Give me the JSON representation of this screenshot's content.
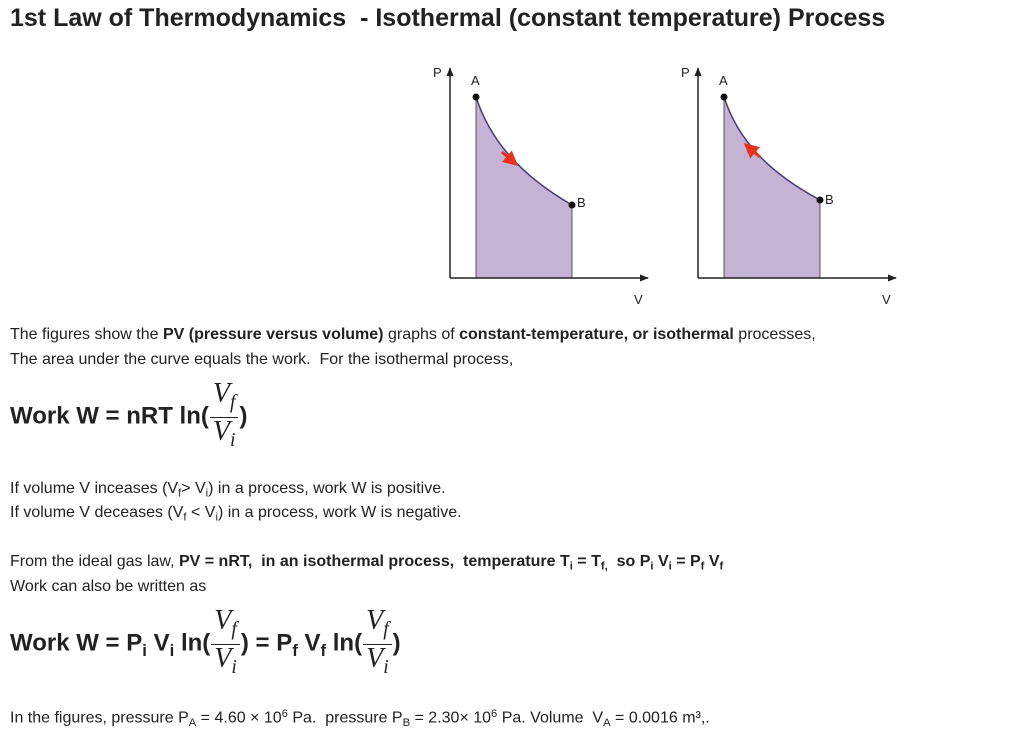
{
  "title": "1st Law of Thermodynamics  - Isothermal (constant temperature) Process",
  "figures": [
    {
      "p_label": "P",
      "v_label": "V",
      "a_label": "A",
      "b_label": "B"
    },
    {
      "p_label": "P",
      "v_label": "V",
      "a_label": "A",
      "b_label": "B"
    }
  ],
  "lines": [
    {
      "runs": [
        {
          "text": "The figures show the "
        },
        {
          "text": "PV (pressure versus volume)",
          "style": "bold"
        },
        {
          "text": " graphs of "
        },
        {
          "text": "constant-temperature, or isothermal",
          "style": "bold"
        },
        {
          "text": " processes,"
        }
      ]
    },
    {
      "runs": [
        {
          "text": "The area under the curve equals the work.  For the isothermal process,"
        }
      ]
    },
    {
      "runs": [
        {
          "text": "Work W = nRT ln("
        },
        {
          "style": "frac",
          "num": [
            {
              "text": "V"
            },
            {
              "text": "f",
              "style": "sub"
            }
          ],
          "den": [
            {
              "text": "V"
            },
            {
              "text": "i",
              "style": "sub"
            }
          ]
        },
        {
          "text": ")"
        }
      ]
    },
    {
      "runs": [
        {
          "text": "If volume V inceases (V"
        },
        {
          "text": "f",
          "style": "sub"
        },
        {
          "text": "> V"
        },
        {
          "text": "i",
          "style": "sub"
        },
        {
          "text": ") in a process, work W is positive."
        }
      ]
    },
    {
      "runs": [
        {
          "text": "If volume V deceases (V"
        },
        {
          "text": "f",
          "style": "sub"
        },
        {
          "text": " < V"
        },
        {
          "text": "i",
          "style": "sub"
        },
        {
          "text": ") in a process, work W is negative."
        }
      ]
    },
    {
      "runs": [
        {
          "text": "From the ideal gas law, "
        },
        {
          "text": "PV = nRT,  in an isothermal process,  temperature T",
          "style": "bold"
        },
        {
          "text": "i",
          "style": "bold-sub"
        },
        {
          "text": " = T",
          "style": "bold"
        },
        {
          "text": "f,",
          "style": "bold-sub"
        },
        {
          "text": "  so P",
          "style": "bold"
        },
        {
          "text": "i",
          "style": "bold-sub"
        },
        {
          "text": " V",
          "style": "bold"
        },
        {
          "text": "i",
          "style": "bold-sub"
        },
        {
          "text": " = P",
          "style": "bold"
        },
        {
          "text": "f",
          "style": "bold-sub"
        },
        {
          "text": " V",
          "style": "bold"
        },
        {
          "text": "f",
          "style": "bold-sub"
        }
      ]
    },
    {
      "runs": [
        {
          "text": "Work can also be written as"
        }
      ]
    },
    {
      "runs": [
        {
          "text": "Work W = P"
        },
        {
          "text": "i",
          "style": "sub"
        },
        {
          "text": " V"
        },
        {
          "text": "i",
          "style": "sub"
        },
        {
          "text": " ln("
        },
        {
          "style": "frac",
          "num": [
            {
              "text": "V"
            },
            {
              "text": "f",
              "style": "sub"
            }
          ],
          "den": [
            {
              "text": "V"
            },
            {
              "text": "i",
              "style": "sub"
            }
          ]
        },
        {
          "text": ") = P"
        },
        {
          "text": "f",
          "style": "sub"
        },
        {
          "text": " V"
        },
        {
          "text": "f",
          "style": "sub"
        },
        {
          "text": " ln("
        },
        {
          "style": "frac",
          "num": [
            {
              "text": "V"
            },
            {
              "text": "f",
              "style": "sub"
            }
          ],
          "den": [
            {
              "text": "V"
            },
            {
              "text": "i",
              "style": "sub"
            }
          ]
        },
        {
          "text": ")"
        }
      ]
    },
    {
      "runs": [
        {
          "text": "In the figures, pressure P"
        },
        {
          "text": "A",
          "style": "sub"
        },
        {
          "text": " = 4.60 × 10"
        },
        {
          "text": "6",
          "style": "sup"
        },
        {
          "text": " Pa.  pressure P"
        },
        {
          "text": "B",
          "style": "sub"
        },
        {
          "text": " = 2.30× 10"
        },
        {
          "text": "6",
          "style": "sup"
        },
        {
          "text": " Pa. Volume  V"
        },
        {
          "text": "A",
          "style": "sub"
        },
        {
          "text": " = 0.0016 m³,."
        }
      ]
    }
  ]
}
